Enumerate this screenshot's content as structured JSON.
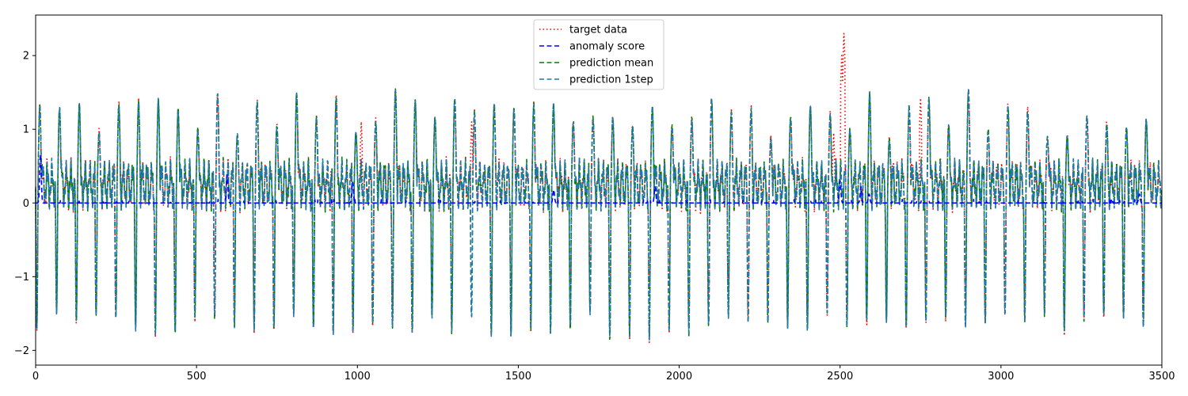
{
  "chart_data": {
    "type": "line",
    "title": "",
    "xlabel": "",
    "ylabel": "",
    "xlim": [
      0,
      3500
    ],
    "ylim": [
      -2.2,
      2.55
    ],
    "xticks": [
      0,
      500,
      1000,
      1500,
      2000,
      2500,
      3000,
      3500
    ],
    "yticks": [
      -2,
      -1,
      0,
      1,
      2
    ],
    "xtick_labels": [
      "0",
      "500",
      "1000",
      "1500",
      "2000",
      "2500",
      "3000",
      "3500"
    ],
    "ytick_labels": [
      "−2",
      "−1",
      "0",
      "1",
      "2"
    ],
    "grid": false,
    "legend_position": "top-center",
    "approx_cycles": 57,
    "wave_max": 1.35,
    "wave_min": -1.85,
    "series": [
      {
        "name": "target data",
        "color": "#ff0000",
        "style": "dotted",
        "spikes": [
          {
            "x": 2505,
            "y": 2.0
          },
          {
            "x": 2512,
            "y": 2.3
          },
          {
            "x": 2480,
            "y": 0.95
          },
          {
            "x": 1012,
            "y": 1.1
          },
          {
            "x": 1355,
            "y": 1.1
          },
          {
            "x": 2750,
            "y": 1.42
          }
        ]
      },
      {
        "name": "anomaly score",
        "color": "#0000ff",
        "style": "dashed",
        "baseline": 0.0,
        "peaks": [
          {
            "x": 15,
            "y": 0.65
          },
          {
            "x": 595,
            "y": 0.38
          },
          {
            "x": 985,
            "y": 0.28
          },
          {
            "x": 1610,
            "y": 0.18
          },
          {
            "x": 1925,
            "y": 0.22
          },
          {
            "x": 2500,
            "y": 0.3
          },
          {
            "x": 2565,
            "y": 0.22
          },
          {
            "x": 2590,
            "y": 0.12
          },
          {
            "x": 3430,
            "y": 0.12
          }
        ]
      },
      {
        "name": "prediction mean",
        "color": "#008000",
        "style": "dashed"
      },
      {
        "name": "prediction 1step",
        "color": "#1f77b4",
        "style": "dashed"
      }
    ]
  }
}
